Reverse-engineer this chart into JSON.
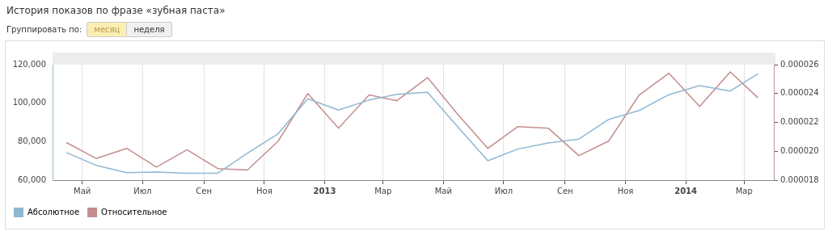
{
  "chart_data": {
    "type": "line",
    "title": "История показов по фразе «зубная паста»",
    "annotations": [
      "Группировать по:",
      "месяц",
      "неделя"
    ],
    "x": [
      "2012-04-15",
      "2012-05-15",
      "2012-06-15",
      "2012-07-15",
      "2012-08-15",
      "2012-09-15",
      "2012-10-15",
      "2012-11-15",
      "2012-12-15",
      "2013-01-15",
      "2013-02-15",
      "2013-03-15",
      "2013-04-15",
      "2013-05-15",
      "2013-06-15",
      "2013-07-15",
      "2013-08-15",
      "2013-09-15",
      "2013-10-15",
      "2013-11-15",
      "2013-12-15",
      "2014-01-15",
      "2014-02-15",
      "2014-03-15"
    ],
    "xlim": [
      "2012-04-01",
      "2014-03-31"
    ],
    "xticks": [
      {
        "value": "2012-05-01",
        "label": "Май"
      },
      {
        "value": "2012-07-01",
        "label": "Июл"
      },
      {
        "value": "2012-09-01",
        "label": "Сен"
      },
      {
        "value": "2012-11-01",
        "label": "Ноя"
      },
      {
        "value": "2013-01-01",
        "label": "2013"
      },
      {
        "value": "2013-03-01",
        "label": "Мар"
      },
      {
        "value": "2013-05-01",
        "label": "Май"
      },
      {
        "value": "2013-07-01",
        "label": "Июл"
      },
      {
        "value": "2013-09-01",
        "label": "Сен"
      },
      {
        "value": "2013-11-01",
        "label": "Ноя"
      },
      {
        "value": "2014-01-01",
        "label": "2014"
      },
      {
        "value": "2014-03-01",
        "label": "Мар"
      }
    ],
    "ylim": [
      60000,
      120000
    ],
    "yticks": [
      {
        "value": 60000,
        "label": "60,000"
      },
      {
        "value": 80000,
        "label": "80,000"
      },
      {
        "value": 100000,
        "label": "100,000"
      },
      {
        "value": 120000,
        "label": "120,000"
      }
    ],
    "y2lim": [
      1.8e-05,
      2.6e-05
    ],
    "y2ticks": [
      {
        "value": 1.8e-05,
        "label": "0.000018"
      },
      {
        "value": 2e-05,
        "label": "0.000020"
      },
      {
        "value": 2.2e-05,
        "label": "0.000022"
      },
      {
        "value": 2.4e-05,
        "label": "0.000024"
      },
      {
        "value": 2.6e-05,
        "label": "0.000026"
      }
    ],
    "grid": "x",
    "legend": "bottom left",
    "marker": "none",
    "series": [
      {
        "name": "Абсолютное",
        "color": "#8fb8d2",
        "values": [
          74300,
          67700,
          63900,
          64200,
          63600,
          63600,
          74000,
          84100,
          102300,
          96400,
          101600,
          104600,
          105600,
          88000,
          70100,
          76100,
          79300,
          81300,
          91500,
          96200,
          104400,
          109100,
          106300,
          115200
        ]
      },
      {
        "name": "Относительное",
        "color": "#c48e8e",
        "axis": "y2",
        "values": [
          2.06e-05,
          1.95e-05,
          2.02e-05,
          1.89e-05,
          2.01e-05,
          1.88e-05,
          1.87e-05,
          2.07e-05,
          2.4e-05,
          2.16e-05,
          2.39e-05,
          2.35e-05,
          2.51e-05,
          2.26e-05,
          2.02e-05,
          2.17e-05,
          2.16e-05,
          1.97e-05,
          2.07e-05,
          2.39e-05,
          2.54e-05,
          2.31e-05,
          2.55e-05,
          2.37e-05
        ]
      }
    ]
  }
}
